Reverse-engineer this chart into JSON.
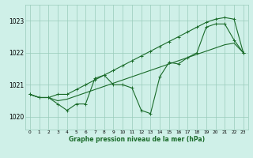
{
  "x": [
    0,
    1,
    2,
    3,
    4,
    5,
    6,
    7,
    8,
    9,
    10,
    11,
    12,
    13,
    14,
    15,
    16,
    17,
    18,
    19,
    20,
    21,
    22,
    23
  ],
  "line_main": [
    1020.7,
    1020.6,
    1020.6,
    1020.4,
    1020.2,
    1020.4,
    1020.4,
    1021.2,
    1021.3,
    1021.0,
    1021.0,
    1020.9,
    1020.2,
    1020.1,
    1021.25,
    1021.7,
    1021.65,
    1021.85,
    1022.0,
    1022.8,
    1022.9,
    1022.9,
    1022.4,
    1022.0
  ],
  "line_upper": [
    1020.7,
    1020.6,
    1020.6,
    1020.7,
    1020.7,
    1020.85,
    1021.0,
    1021.15,
    1021.3,
    1021.45,
    1021.6,
    1021.75,
    1021.9,
    1022.05,
    1022.2,
    1022.35,
    1022.5,
    1022.65,
    1022.8,
    1022.95,
    1023.05,
    1023.1,
    1023.05,
    1022.0
  ],
  "line_lower": [
    1020.7,
    1020.6,
    1020.6,
    1020.5,
    1020.55,
    1020.65,
    1020.75,
    1020.85,
    1020.95,
    1021.05,
    1021.15,
    1021.25,
    1021.35,
    1021.45,
    1021.55,
    1021.65,
    1021.75,
    1021.85,
    1021.95,
    1022.05,
    1022.15,
    1022.25,
    1022.3,
    1022.0
  ],
  "bg_color": "#cff0e8",
  "grid_color": "#99ccbb",
  "line_color": "#1a6b2a",
  "xlabel": "Graphe pression niveau de la mer (hPa)",
  "ylim": [
    1019.6,
    1023.5
  ],
  "yticks": [
    1020,
    1021,
    1022,
    1023
  ],
  "xlim": [
    -0.5,
    23.5
  ],
  "marker": "+",
  "marker_size": 3,
  "linewidth": 0.8
}
